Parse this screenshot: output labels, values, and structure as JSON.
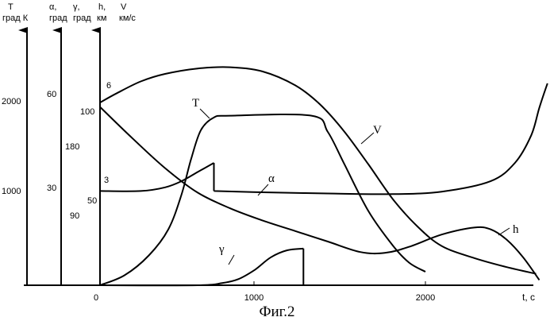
{
  "caption": "Фиг.2",
  "chart_data": {
    "type": "line",
    "x_axis": {
      "label": "t, с",
      "ticks": [
        {
          "value": 0,
          "label": "0"
        },
        {
          "value": 1000,
          "label": "1000"
        },
        {
          "value": 2000,
          "label": "2000"
        }
      ]
    },
    "y_axes": [
      {
        "id": "T",
        "label_lines": [
          "T",
          "град К"
        ],
        "ticks": [
          {
            "value": 1000,
            "label": "1000"
          },
          {
            "value": 2000,
            "label": "2000"
          }
        ]
      },
      {
        "id": "alpha",
        "label_lines": [
          "α,",
          "град"
        ],
        "ticks": [
          {
            "value": 30,
            "label": "30"
          },
          {
            "value": 60,
            "label": "60"
          }
        ]
      },
      {
        "id": "gamma",
        "label_lines": [
          "γ,",
          "град"
        ],
        "ticks": [
          {
            "value": 90,
            "label": "90"
          },
          {
            "value": 180,
            "label": "180"
          }
        ]
      },
      {
        "id": "h",
        "label_lines": [
          "h,",
          "км"
        ],
        "ticks": [
          {
            "value": 50,
            "label": "50"
          },
          {
            "value": 100,
            "label": "100"
          }
        ]
      },
      {
        "id": "V",
        "label_lines": [
          "V",
          "км/с"
        ],
        "ticks": [
          {
            "value": 3,
            "label": "3"
          },
          {
            "value": 6,
            "label": "6"
          }
        ]
      }
    ],
    "series": [
      {
        "name": "V",
        "axis": "V",
        "points": [
          [
            0,
            6.05
          ],
          [
            100,
            6.35
          ],
          [
            250,
            6.75
          ],
          [
            400,
            7.0
          ],
          [
            600,
            7.18
          ],
          [
            800,
            7.22
          ],
          [
            1000,
            7.08
          ],
          [
            1200,
            6.62
          ],
          [
            1350,
            6.0
          ],
          [
            1500,
            5.1
          ],
          [
            1650,
            4.0
          ],
          [
            1800,
            2.85
          ],
          [
            1950,
            1.95
          ],
          [
            2100,
            1.3
          ],
          [
            2300,
            0.9
          ],
          [
            2500,
            0.6
          ],
          [
            2680,
            0.38
          ]
        ]
      },
      {
        "name": "T",
        "axis": "T",
        "points": [
          [
            0,
            0
          ],
          [
            150,
            110
          ],
          [
            300,
            330
          ],
          [
            420,
            620
          ],
          [
            500,
            1000
          ],
          [
            560,
            1400
          ],
          [
            620,
            1720
          ],
          [
            700,
            1860
          ],
          [
            800,
            1880
          ],
          [
            1300,
            1880
          ],
          [
            1400,
            1700
          ],
          [
            1500,
            1350
          ],
          [
            1650,
            820
          ],
          [
            1800,
            440
          ],
          [
            1900,
            250
          ],
          [
            2000,
            150
          ]
        ]
      },
      {
        "name": "α",
        "axis": "alpha",
        "points": [
          [
            0,
            30.8
          ],
          [
            250,
            30.8
          ],
          [
            400,
            32.0
          ],
          [
            500,
            34.0
          ],
          [
            600,
            37.0
          ],
          [
            700,
            40.0
          ],
          [
            700,
            30.8
          ],
          [
            1000,
            30.4
          ],
          [
            1400,
            30.0
          ],
          [
            1800,
            29.8
          ],
          [
            2100,
            30.6
          ],
          [
            2400,
            34.0
          ],
          [
            2550,
            40.0
          ],
          [
            2650,
            49.0
          ],
          [
            2700,
            58.0
          ],
          [
            2750,
            66.0
          ]
        ]
      },
      {
        "name": "h",
        "axis": "h",
        "points": [
          [
            0,
            102
          ],
          [
            200,
            84
          ],
          [
            400,
            67
          ],
          [
            600,
            53
          ],
          [
            800,
            44
          ],
          [
            1000,
            37
          ],
          [
            1200,
            31
          ],
          [
            1400,
            25
          ],
          [
            1600,
            19
          ],
          [
            1750,
            18.5
          ],
          [
            1900,
            22
          ],
          [
            2100,
            29
          ],
          [
            2300,
            33
          ],
          [
            2400,
            32
          ],
          [
            2500,
            26
          ],
          [
            2600,
            16
          ],
          [
            2700,
            3
          ]
        ]
      },
      {
        "name": "γ",
        "axis": "gamma",
        "points": [
          [
            0,
            0
          ],
          [
            600,
            0
          ],
          [
            750,
            5
          ],
          [
            850,
            14
          ],
          [
            950,
            35
          ],
          [
            1050,
            64
          ],
          [
            1150,
            80
          ],
          [
            1250,
            84
          ],
          [
            1250,
            0
          ]
        ]
      }
    ]
  }
}
